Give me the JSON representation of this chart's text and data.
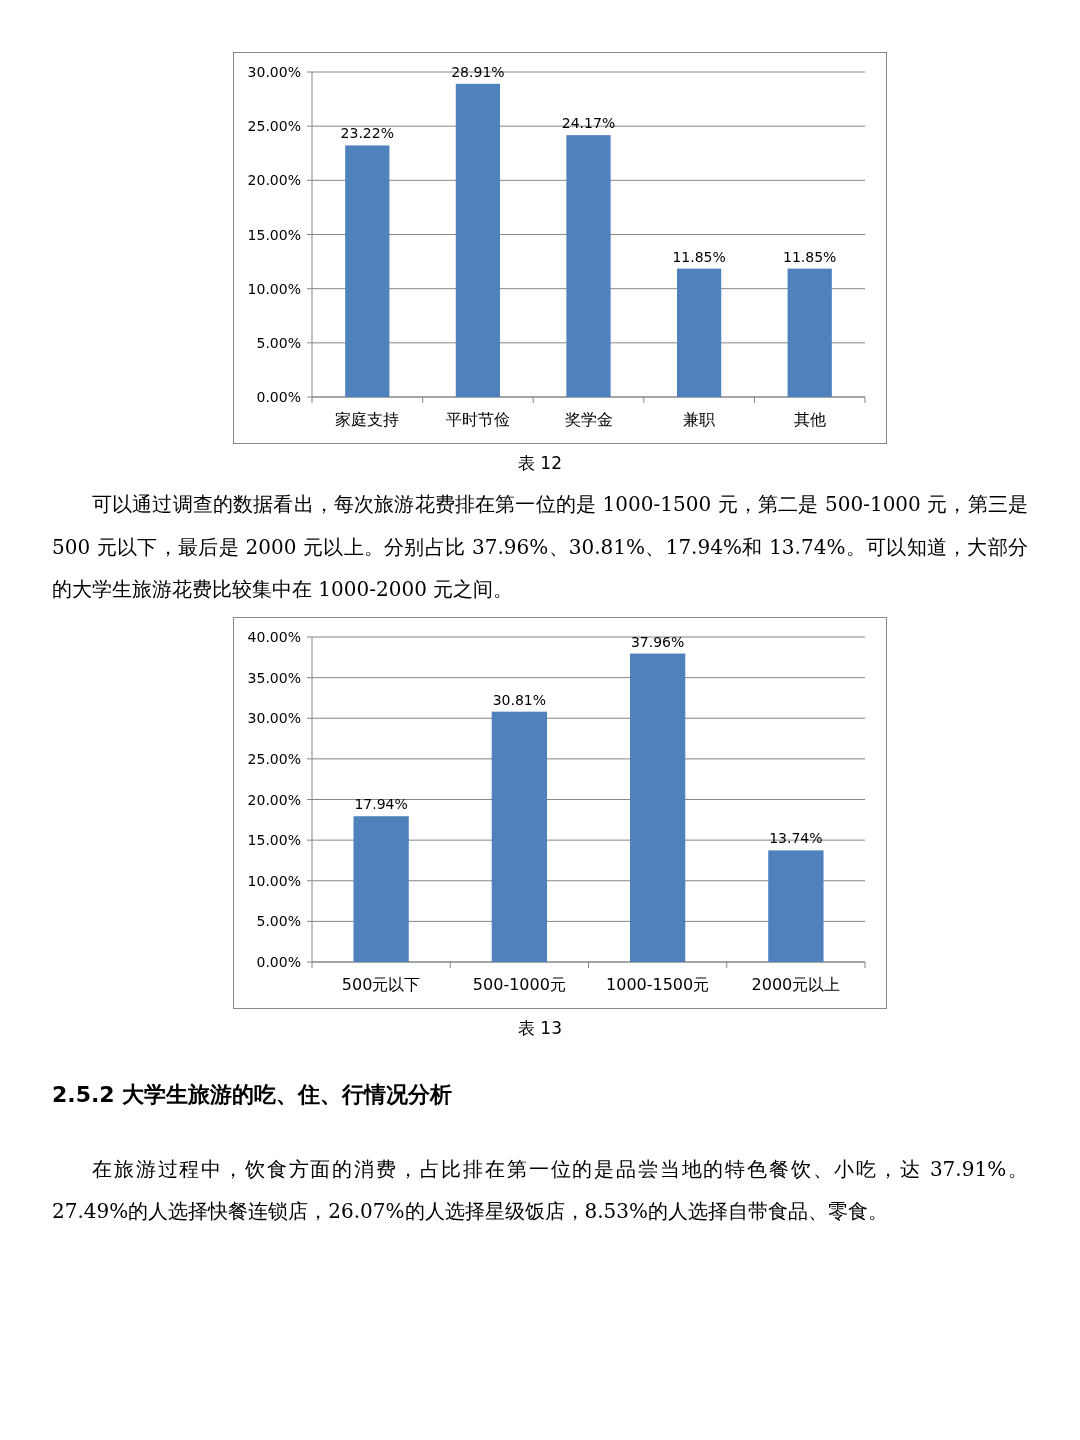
{
  "chart_data": [
    {
      "type": "bar",
      "categories": [
        "家庭支持",
        "平时节俭",
        "奖学金",
        "兼职",
        "其他"
      ],
      "values": [
        23.22,
        28.91,
        24.17,
        11.85,
        11.85
      ],
      "value_labels": [
        "23.22%",
        "28.91%",
        "24.17%",
        "11.85%",
        "11.85%"
      ],
      "color": "#4f81bd",
      "ylim": [
        0,
        30
      ],
      "yticks": [
        {
          "value": 0,
          "label": "0.00%"
        },
        {
          "value": 5,
          "label": "5.00%"
        },
        {
          "value": 10,
          "label": "10.00%"
        },
        {
          "value": 15,
          "label": "15.00%"
        },
        {
          "value": 20,
          "label": "20.00%"
        },
        {
          "value": 25,
          "label": "25.00%"
        },
        {
          "value": 30,
          "label": "30.00%"
        }
      ],
      "grid": "y",
      "annotations": [
        "表 12",
        "可以通过调查的数据看出，每次旅游花费排在第一位的是 1000-1500 元，第二是 500-1000 元，第三是 500 元以下，最后是 2000 元以上。分别占比 37.96%、30.81%、17.94%和 13.74%。可以知道，大部分的大学生旅游花费比较集中在 1000-2000 元之间。"
      ]
    },
    {
      "type": "bar",
      "categories": [
        "500元以下",
        "500-1000元",
        "1000-1500元",
        "2000元以上"
      ],
      "values": [
        17.94,
        30.81,
        37.96,
        13.74
      ],
      "value_labels": [
        "17.94%",
        "30.81%",
        "37.96%",
        "13.74%"
      ],
      "color": "#4f81bd",
      "ylim": [
        0,
        40
      ],
      "yticks": [
        {
          "value": 0,
          "label": "0.00%"
        },
        {
          "value": 5,
          "label": "5.00%"
        },
        {
          "value": 10,
          "label": "10.00%"
        },
        {
          "value": 15,
          "label": "15.00%"
        },
        {
          "value": 20,
          "label": "20.00%"
        },
        {
          "value": 25,
          "label": "25.00%"
        },
        {
          "value": 30,
          "label": "30.00%"
        },
        {
          "value": 35,
          "label": "35.00%"
        },
        {
          "value": 40,
          "label": "40.00%"
        }
      ],
      "grid": "y",
      "annotations": [
        "表 13",
        "2.5.2 大学生旅游的吃、住、行情况分析",
        "在旅游过程中，饮食方面的消费，占比排在第一位的是品尝当地的特色餐饮、小吃，达 37.91%。27.49%的人选择快餐连锁店，26.07%的人选择星级饭店，8.53%的人选择自带食品、零食。"
      ]
    }
  ]
}
